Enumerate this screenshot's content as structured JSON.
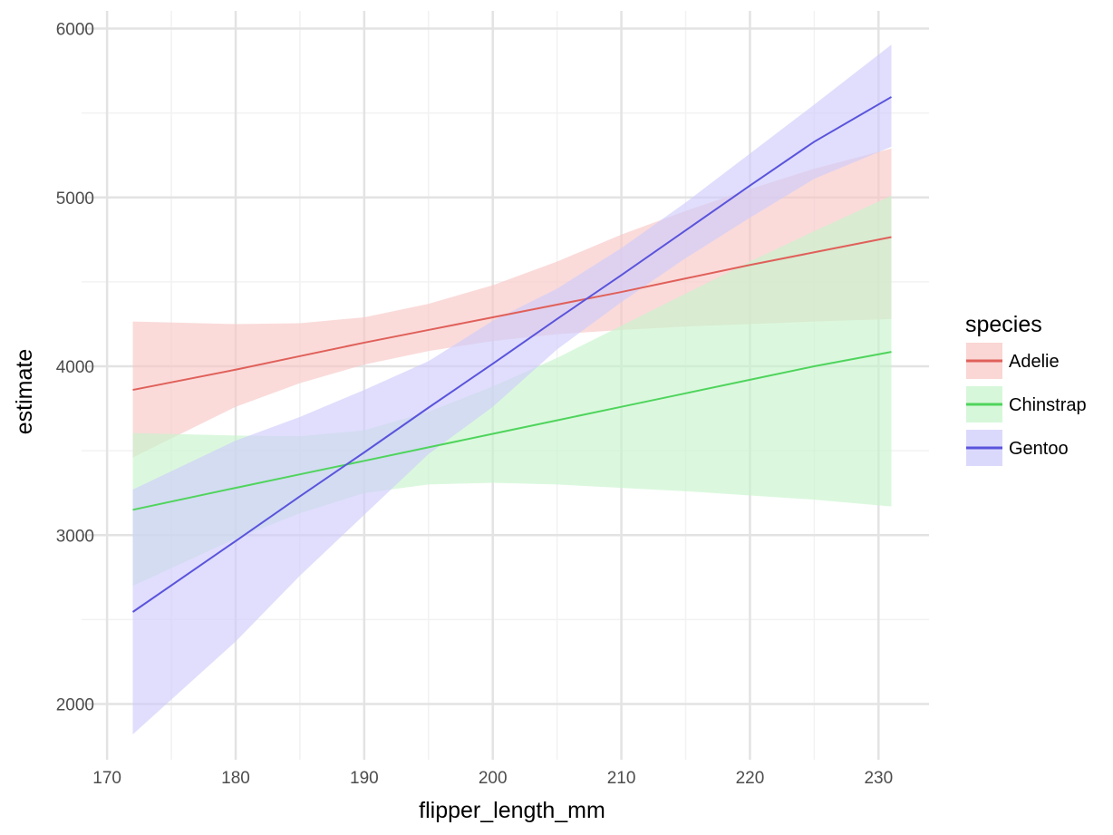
{
  "chart_data": {
    "type": "line",
    "title": "",
    "xlabel": "flipper_length_mm",
    "ylabel": "estimate",
    "xlim": [
      170,
      234
    ],
    "ylim": [
      1670,
      6100
    ],
    "x_ticks": [
      170,
      180,
      190,
      200,
      210,
      220,
      230
    ],
    "y_ticks": [
      2000,
      3000,
      4000,
      5000,
      6000
    ],
    "x_tick_labels": [
      "170",
      "180",
      "190",
      "200",
      "210",
      "220",
      "230"
    ],
    "y_tick_labels": [
      "2000",
      "3000",
      "4000",
      "5000",
      "6000"
    ],
    "grid": true,
    "legend": {
      "title": "species",
      "position": "right"
    },
    "series": [
      {
        "name": "Adelie",
        "color": "#e0605a",
        "band_color": "#f8c8c6",
        "x": [
          172,
          180,
          185,
          190,
          195,
          200,
          205,
          210,
          215,
          220,
          225,
          231
        ],
        "y": [
          3860,
          3980,
          4060,
          4140,
          4215,
          4290,
          4365,
          4440,
          4520,
          4600,
          4675,
          4765
        ],
        "lower": [
          3460,
          3760,
          3900,
          4010,
          4090,
          4150,
          4190,
          4215,
          4235,
          4250,
          4265,
          4280
        ],
        "upper": [
          4265,
          4250,
          4255,
          4290,
          4370,
          4480,
          4620,
          4780,
          4920,
          5050,
          5170,
          5290
        ]
      },
      {
        "name": "Chinstrap",
        "color": "#4fd45c",
        "band_color": "#c8f4cc",
        "x": [
          172,
          180,
          185,
          190,
          195,
          200,
          205,
          210,
          215,
          220,
          225,
          231
        ],
        "y": [
          3150,
          3280,
          3360,
          3440,
          3520,
          3600,
          3680,
          3760,
          3840,
          3920,
          4000,
          4085
        ],
        "lower": [
          2700,
          2980,
          3130,
          3250,
          3300,
          3310,
          3300,
          3280,
          3260,
          3235,
          3210,
          3170
        ],
        "upper": [
          3605,
          3590,
          3585,
          3620,
          3730,
          3880,
          4050,
          4240,
          4430,
          4620,
          4800,
          5010
        ]
      },
      {
        "name": "Gentoo",
        "color": "#5a54dc",
        "band_color": "#cfccfa",
        "x": [
          172,
          180,
          185,
          190,
          195,
          200,
          205,
          210,
          215,
          220,
          225,
          231
        ],
        "y": [
          2545,
          2965,
          3230,
          3490,
          3755,
          4015,
          4280,
          4540,
          4805,
          5070,
          5330,
          5595
        ],
        "lower": [
          1820,
          2370,
          2760,
          3120,
          3480,
          3760,
          4100,
          4380,
          4640,
          4880,
          5110,
          5300
        ],
        "upper": [
          3270,
          3560,
          3700,
          3860,
          4030,
          4270,
          4460,
          4700,
          4970,
          5260,
          5550,
          5905
        ]
      }
    ]
  }
}
